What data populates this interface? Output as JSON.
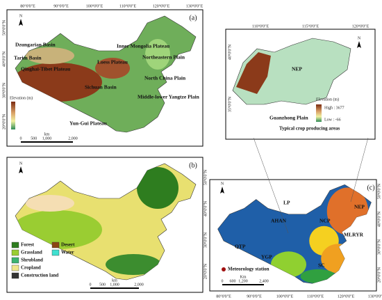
{
  "panel_a": {
    "tag": "(a)",
    "compass": "N",
    "lon": [
      "80°0'0\"E",
      "90°0'0\"E",
      "100°0'0\"E",
      "110°0'0\"E",
      "120°0'0\"E",
      "130°0'0\"E"
    ],
    "lat": [
      "50°0'0\"N",
      "40°0'0\"N",
      "30°0'0\"N",
      "20°0'0\"N"
    ],
    "places": [
      "Dzungarian Basin",
      "Tarim Basin",
      "Qinghai-Tibet Plateau",
      "Inner Mongolia Plateau",
      "Loess Plateau",
      "Northeastern Plain",
      "North China Plain",
      "Middle-lower Yangtze Plain",
      "Yun-Gui Plateau",
      "Sichuan Basin"
    ],
    "legend_title": "Elevation (m)",
    "scale": [
      "0",
      "500",
      "1,000",
      "2,000"
    ],
    "scale_unit": "km"
  },
  "inset": {
    "compass": "N",
    "lon": [
      "110°0'0\"E",
      "115°0'0\"E",
      "120°0'0\"E"
    ],
    "lat": [
      "40°0'0\"N",
      "35°0'0\"N"
    ],
    "places": [
      "NEP",
      "Guanzhong Plain"
    ],
    "title": "Typical crop producing areas",
    "legend_title": "Elevation (m)",
    "high": "High : 3677",
    "low": "Low : -66"
  },
  "panel_b": {
    "tag": "(b)",
    "compass": "N",
    "lat": [
      "50°0'0\"N",
      "40°0'0\"N",
      "30°0'0\"N",
      "20°0'0\"N"
    ],
    "legend": [
      {
        "name": "Forest",
        "color": "#2e7d1f"
      },
      {
        "name": "Grassland",
        "color": "#9acd32"
      },
      {
        "name": "Shrubland",
        "color": "#3cb371"
      },
      {
        "name": "Cropland",
        "color": "#f0e68c"
      },
      {
        "name": "Construction land",
        "color": "#333333"
      },
      {
        "name": "Desert",
        "color": "#8b4513"
      },
      {
        "name": "Water",
        "color": "#40e0d0"
      }
    ],
    "scale": [
      "0",
      "500",
      "1,000",
      "2,000"
    ],
    "scale_unit": "km"
  },
  "panel_c": {
    "tag": "(c)",
    "compass": "N",
    "lon": [
      "80°0'0\"E",
      "90°0'0\"E",
      "100°0'0\"E",
      "110°0'0\"E",
      "120°0'0\"E",
      "130°0'0\"E"
    ],
    "lat": [
      "50°0'0\"N",
      "40°0'0\"N",
      "30°0'0\"N",
      "20°0'0\"N"
    ],
    "regions": [
      "QTP",
      "YGP",
      "SC",
      "MLRYR",
      "LP",
      "NCP",
      "NEP",
      "AHAN"
    ],
    "station": "Meteorology station",
    "scale": [
      "0",
      "600",
      "1,200",
      "2,400"
    ],
    "scale_unit": "Km"
  }
}
